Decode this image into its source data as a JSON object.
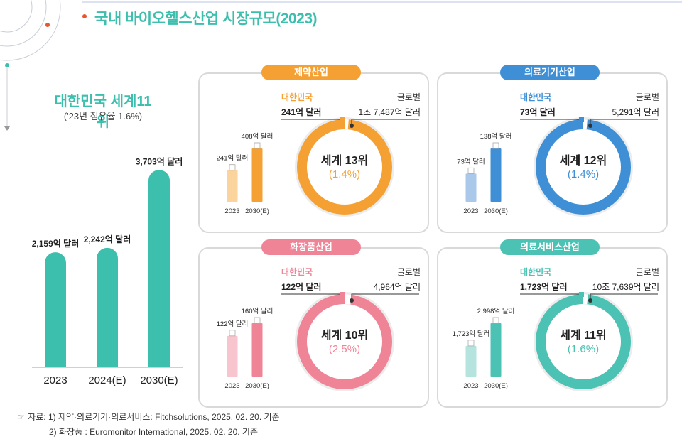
{
  "header": {
    "title": "국내 바이오헬스산업 시장규모(2023)"
  },
  "summary": {
    "title": "대한민국 세계11위",
    "subtitle": "('23년 점유율 1.6%)"
  },
  "colors": {
    "teal": "#3dbfae",
    "orange": "#f5a033",
    "blue": "#3f8fd6",
    "pink": "#ef8497",
    "mint": "#4cc2b4",
    "grid": "#d9d9d9"
  },
  "chart_data": [
    {
      "type": "bar",
      "title": "국내 바이오헬스산업 시장규모",
      "categories": [
        "2023",
        "2024(E)",
        "2030(E)"
      ],
      "values": [
        2159,
        2242,
        3703
      ],
      "value_labels": [
        "2,159억 달러",
        "2,242억 달러",
        "3,703억 달러"
      ],
      "unit": "억 달러",
      "ylim": [
        0,
        4000
      ]
    }
  ],
  "panels": [
    {
      "key": "pharma",
      "title": "제약산업",
      "color": "#f5a033",
      "light": "#fbd39c",
      "korea_label": "대한민국",
      "korea_value": "241억 달러",
      "global_label": "글로벌",
      "global_value": "1조 7,487억 달러",
      "rank": "세계 13위",
      "share_text": "(1.4%)",
      "share": 0.014,
      "bar_categories": [
        "2023",
        "2030(E)"
      ],
      "bar_values": [
        241,
        408
      ],
      "bar_labels": [
        "241억 달러",
        "408억 달러"
      ]
    },
    {
      "key": "medical",
      "title": "의료기기산업",
      "color": "#3f8fd6",
      "light": "#a9c8ea",
      "korea_label": "대한민국",
      "korea_value": "73억 달러",
      "global_label": "글로벌",
      "global_value": "5,291억 달러",
      "rank": "세계 12위",
      "share_text": "(1.4%)",
      "share": 0.014,
      "bar_categories": [
        "2023",
        "2030(E)"
      ],
      "bar_values": [
        73,
        138
      ],
      "bar_labels": [
        "73억 달러",
        "138억 달러"
      ]
    },
    {
      "key": "cosmetic",
      "title": "화장품산업",
      "color": "#ef8497",
      "light": "#f8c5cf",
      "korea_label": "대한민국",
      "korea_value": "122억 달러",
      "global_label": "글로벌",
      "global_value": "4,964억 달러",
      "rank": "세계 10위",
      "share_text": "(2.5%)",
      "share": 0.025,
      "bar_categories": [
        "2023",
        "2030(E)"
      ],
      "bar_values": [
        122,
        160
      ],
      "bar_labels": [
        "122억 달러",
        "160억 달러"
      ]
    },
    {
      "key": "service",
      "title": "의료서비스산업",
      "color": "#4cc2b4",
      "light": "#b5e3de",
      "korea_label": "대한민국",
      "korea_value": "1,723억 달러",
      "global_label": "글로벌",
      "global_value": "10조 7,639억 달러",
      "rank": "세계 11위",
      "share_text": "(1.6%)",
      "share": 0.016,
      "bar_categories": [
        "2023",
        "2030(E)"
      ],
      "bar_values": [
        1723,
        2998
      ],
      "bar_labels": [
        "1,723억 달러",
        "2,998억 달러"
      ]
    }
  ],
  "sources": [
    "자료: 1) 제약·의료기기·의료서비스: Fitchsolutions, 2025. 02. 20. 기준",
    "2) 화장품 : Euromonitor International, 2025. 02. 20. 기준"
  ]
}
